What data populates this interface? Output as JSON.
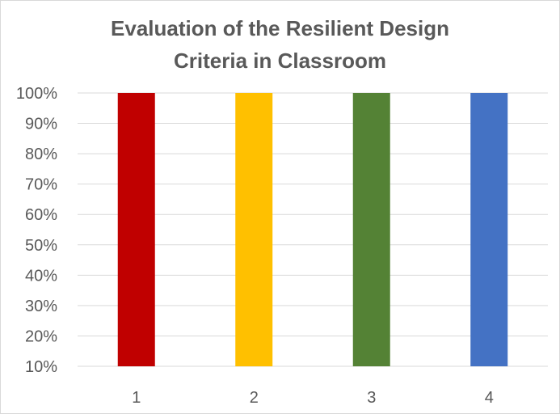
{
  "chart_data": {
    "type": "bar",
    "title_lines": [
      "Evaluation of the Resilient Design",
      "Criteria in Classroom"
    ],
    "categories": [
      "1",
      "2",
      "3",
      "4"
    ],
    "values": [
      100,
      100,
      100,
      100
    ],
    "value_unit": "%",
    "bar_colors": [
      "#c00000",
      "#ffc000",
      "#548235",
      "#4472c4"
    ],
    "xlabel": "",
    "ylabel": "",
    "ylim": [
      10,
      100
    ],
    "yticks": [
      10,
      20,
      30,
      40,
      50,
      60,
      70,
      80,
      90,
      100
    ],
    "ytick_labels": [
      "10%",
      "20%",
      "30%",
      "40%",
      "50%",
      "60%",
      "70%",
      "80%",
      "90%",
      "100%"
    ],
    "grid": true,
    "legend": "none"
  },
  "colors": {
    "title": "#595959",
    "gridline": "#d9d9d9",
    "tick_text": "#595959",
    "border": "#d9d9d9"
  }
}
